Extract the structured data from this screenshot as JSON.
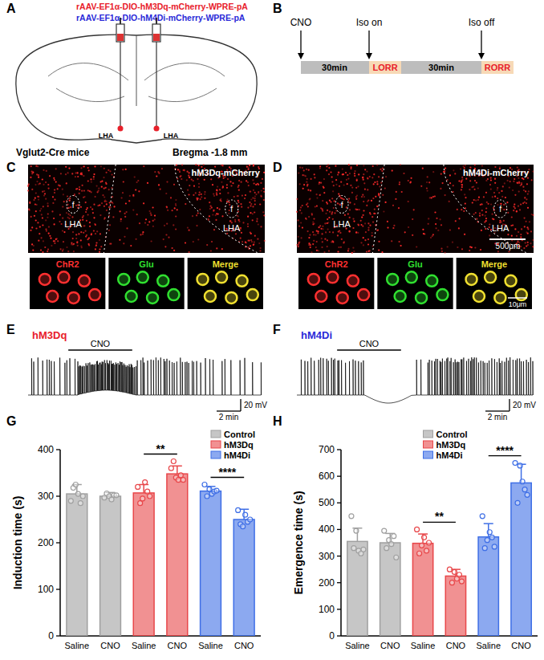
{
  "panel_labels": [
    "A",
    "B",
    "C",
    "D",
    "E",
    "F",
    "G",
    "H"
  ],
  "panel_a": {
    "vectors": [
      {
        "text": "rAAV-EF1α-DIO-hM3Dq-mCherry-WPRE-pA",
        "color": "#e8202a"
      },
      {
        "text": "rAAV-EF1α-DIO-hM4Di-mCherry-WPRE-pA",
        "color": "#2a2ad8"
      }
    ],
    "region": "LHA",
    "mouse": "Vglut2-Cre mice",
    "bregma": "Bregma -1.8 mm"
  },
  "panel_b": {
    "start": "CNO",
    "iso_on": "Iso on",
    "iso_off": "Iso off",
    "interval": "30min",
    "events": [
      "LORR",
      "RORR"
    ]
  },
  "panel_c": {
    "title": "hM3Dq-mCherry",
    "region": "LHA",
    "tract": "f",
    "channels": [
      "ChR2",
      "Glu",
      "Merge"
    ]
  },
  "panel_d": {
    "title": "hM4Di-mCherry",
    "region": "LHA",
    "tract": "f",
    "channels": [
      "ChR2",
      "Glu",
      "Merge"
    ],
    "scale": "500μm",
    "inset_scale": "10μm"
  },
  "panel_e": {
    "title": "hM3Dq",
    "color": "#e8202a",
    "drug": "CNO",
    "scale_v": "20 mV",
    "scale_t": "2 min"
  },
  "panel_f": {
    "title": "hM4Di",
    "color": "#2a2ad8",
    "drug": "CNO",
    "scale_v": "20 mV",
    "scale_t": "2 min"
  },
  "chart_data": [
    {
      "type": "bar",
      "y_label": "Induction time (s)",
      "categories": [
        "Saline",
        "CNO",
        "Saline",
        "CNO",
        "Saline",
        "CNO"
      ],
      "ylim": [
        0,
        400
      ],
      "yticks": [
        0,
        100,
        200,
        300,
        400
      ],
      "legend": "top-right",
      "series": [
        {
          "name": "Control",
          "color": "#a0a0a0",
          "values": [
            305,
            300,
            null,
            null,
            null,
            null
          ],
          "errors": [
            20,
            8,
            null,
            null,
            null,
            null
          ],
          "points": [
            [
              290,
              318,
              325,
              305,
              285,
              300
            ],
            [
              297,
              306,
              300,
              293,
              302,
              302
            ],
            null,
            null,
            null,
            null
          ]
        },
        {
          "name": "hM3Dq",
          "color": "#e8474a",
          "values": [
            null,
            null,
            307,
            348,
            null,
            null
          ],
          "errors": [
            null,
            null,
            18,
            17,
            null,
            null
          ],
          "points": [
            null,
            null,
            [
              320,
              285,
              295,
              330,
              310,
              300
            ],
            [
              360,
              375,
              340,
              335,
              345,
              335
            ],
            null,
            null
          ]
        },
        {
          "name": "hM4Di",
          "color": "#3f6fe6",
          "values": [
            null,
            null,
            null,
            null,
            311,
            250
          ],
          "errors": [
            null,
            null,
            null,
            null,
            10,
            22
          ],
          "points": [
            null,
            null,
            null,
            null,
            [
              325,
              300,
              315,
              305,
              310,
              312
            ],
            [
              270,
              240,
              235,
              260,
              245,
              250
            ]
          ]
        }
      ],
      "significance": [
        {
          "from": 2,
          "to": 3,
          "label": "**"
        },
        {
          "from": 4,
          "to": 5,
          "label": "****"
        }
      ]
    },
    {
      "type": "bar",
      "y_label": "Emergence time (s)",
      "categories": [
        "Saline",
        "CNO",
        "Saline",
        "CNO",
        "Saline",
        "CNO"
      ],
      "ylim": [
        0,
        700
      ],
      "yticks": [
        0,
        100,
        200,
        300,
        400,
        500,
        600,
        700
      ],
      "legend": "top-center",
      "series": [
        {
          "name": "Control",
          "color": "#a0a0a0",
          "values": [
            355,
            350,
            null,
            null,
            null,
            null
          ],
          "errors": [
            50,
            35,
            null,
            null,
            null,
            null
          ],
          "points": [
            [
              450,
              330,
              395,
              320,
              310,
              325
            ],
            [
              395,
              330,
              360,
              345,
              375,
              295
            ],
            null,
            null,
            null,
            null
          ]
        },
        {
          "name": "hM3Dq",
          "color": "#e8474a",
          "values": [
            null,
            null,
            348,
            225,
            null,
            null
          ],
          "errors": [
            null,
            null,
            35,
            25,
            null,
            null
          ],
          "points": [
            null,
            null,
            [
              400,
              310,
              340,
              370,
              320,
              350
            ],
            [
              250,
              200,
              240,
              215,
              230,
              205
            ],
            null,
            null
          ]
        },
        {
          "name": "hM4Di",
          "color": "#3f6fe6",
          "values": [
            null,
            null,
            null,
            null,
            372,
            575
          ],
          "errors": [
            null,
            null,
            null,
            null,
            50,
            70
          ],
          "points": [
            null,
            null,
            null,
            null,
            [
              450,
              330,
              360,
              390,
              370,
              335
            ],
            [
              650,
              500,
              640,
              580,
              550,
              530
            ]
          ]
        }
      ],
      "significance": [
        {
          "from": 2,
          "to": 3,
          "label": "**"
        },
        {
          "from": 4,
          "to": 5,
          "label": "****"
        }
      ]
    }
  ]
}
